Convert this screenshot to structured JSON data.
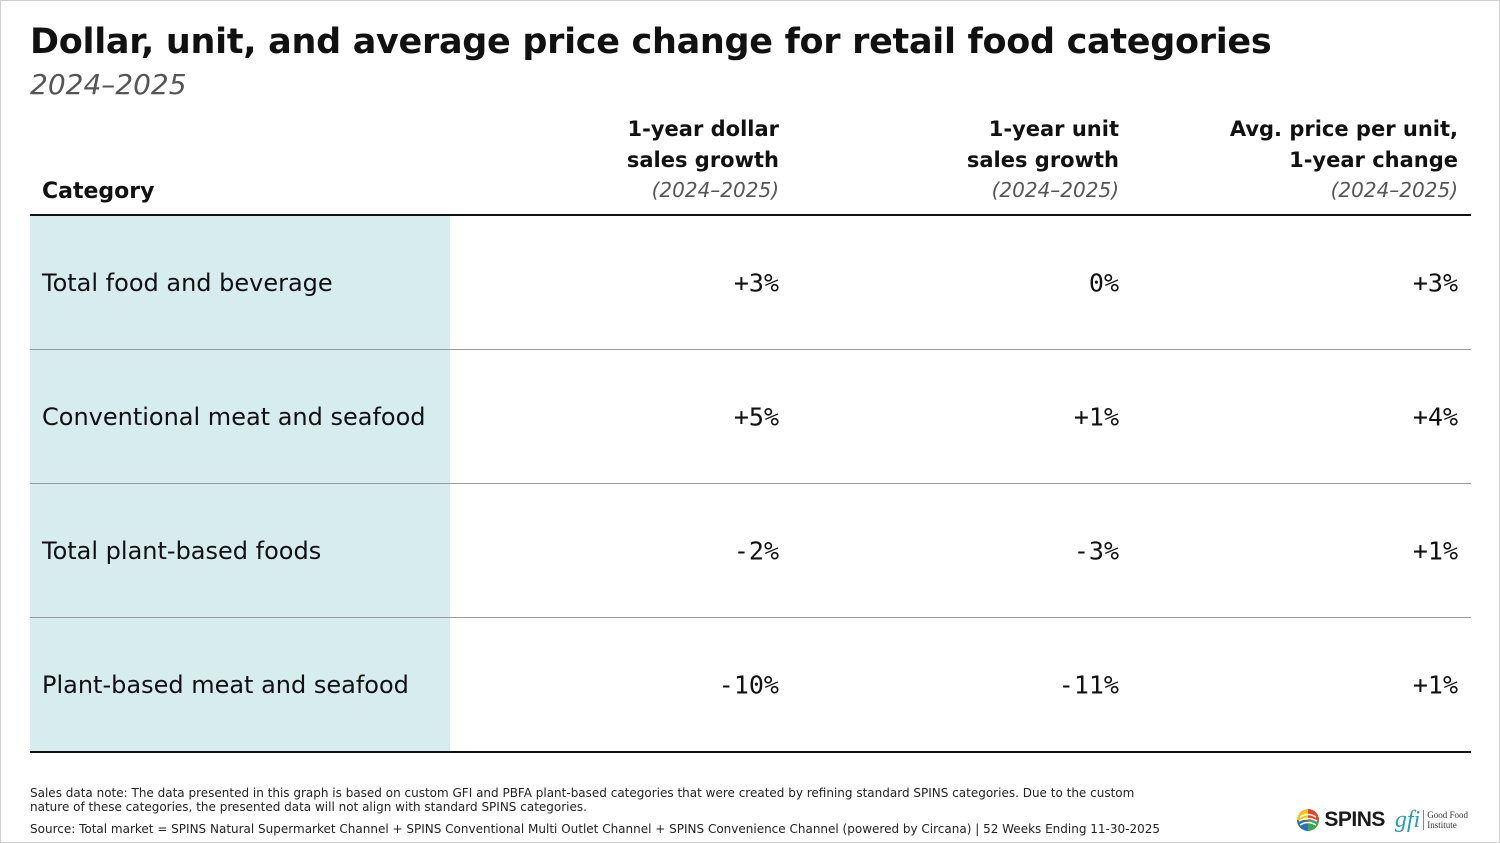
{
  "title": "Dollar, unit, and average price change for retail food categories",
  "subtitle": "2024–2025",
  "chart_data": {
    "type": "table",
    "columns": [
      {
        "label_line1": "1-year dollar",
        "label_line2": "sales growth",
        "period": "(2024–2025)"
      },
      {
        "label_line1": "1-year unit",
        "label_line2": "sales growth",
        "period": "(2024–2025)"
      },
      {
        "label_line1": "Avg. price per unit,",
        "label_line2": "1-year change",
        "period": "(2024–2025)"
      }
    ],
    "category_header": "Category",
    "rows": [
      {
        "category": "Total food and beverage",
        "dollar": "+3%",
        "unit": "0%",
        "price": "+3%"
      },
      {
        "category": "Conventional meat and seafood",
        "dollar": "+5%",
        "unit": "+1%",
        "price": "+4%"
      },
      {
        "category": "Total plant-based foods",
        "dollar": "-2%",
        "unit": "-3%",
        "price": "+1%"
      },
      {
        "category": "Plant-based meat and seafood",
        "dollar": "-10%",
        "unit": "-11%",
        "price": "+1%"
      }
    ],
    "category_highlight_color": "#d6ecef"
  },
  "footer": {
    "note": "Sales data note: The data presented in this graph is based on custom GFI and PBFA plant-based categories that were created by refining standard SPINS categories. Due to the custom nature of these categories, the presented data will not align with standard SPINS categories.",
    "source": "Source: Total market = SPINS Natural Supermarket Channel + SPINS Conventional Multi Outlet Channel + SPINS Convenience Channel (powered by Circana) | 52 Weeks Ending 11-30-2025"
  },
  "logos": {
    "spins": "SPINS",
    "gfi_mark": "gfi",
    "gfi_name_line1": "Good Food",
    "gfi_name_line2": "Institute"
  }
}
